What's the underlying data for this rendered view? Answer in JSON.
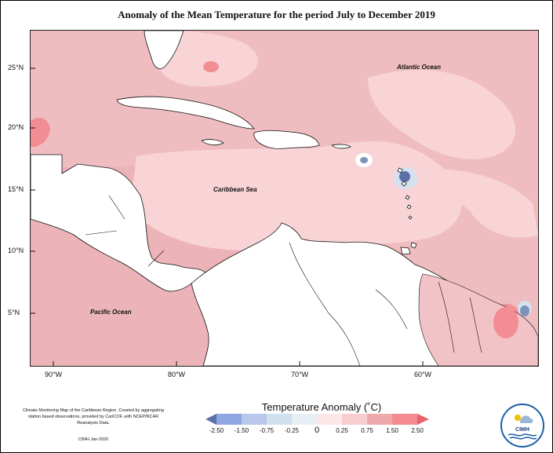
{
  "title": "Anomaly of the Mean Temperature for the period July to December 2019",
  "latitude_labels": [
    "25°N",
    "20°N",
    "15°N",
    "10°N",
    "5°N"
  ],
  "longitude_labels": [
    "90°W",
    "80°W",
    "70°W",
    "60°W"
  ],
  "ocean_labels": {
    "atlantic": "Atlantic Ocean",
    "caribbean": "Caribbean Sea",
    "pacific": "Pacific Ocean"
  },
  "legend": {
    "title": "Temperature Anomaly (˚C)",
    "ticks": [
      "-2.50",
      "-1.50",
      "-0.75",
      "-0.25",
      "0",
      "0.25",
      "0.75",
      "1.50",
      "2.50"
    ],
    "colors": [
      "#5b6fa8",
      "#8fa6e0",
      "#b8c7ea",
      "#cfe0ee",
      "#fde6e8",
      "#f7cdd0",
      "#eea9ad",
      "#f38b90",
      "#e8646c"
    ]
  },
  "footnote": "Climate Monitoring Map of the Caribbean Region. Created by aggregating station based observations, provided by CariCOF, with NCEP/NCAR Reanalysis Data.",
  "credit": "CIMH Jan-2020",
  "logo_text": "CIMH",
  "colors": {
    "warm_main": "#ecb4b8",
    "warm_light": "#f8d4d7",
    "warm_strong": "#f28d93",
    "cool_spot": "#7f93b8"
  }
}
